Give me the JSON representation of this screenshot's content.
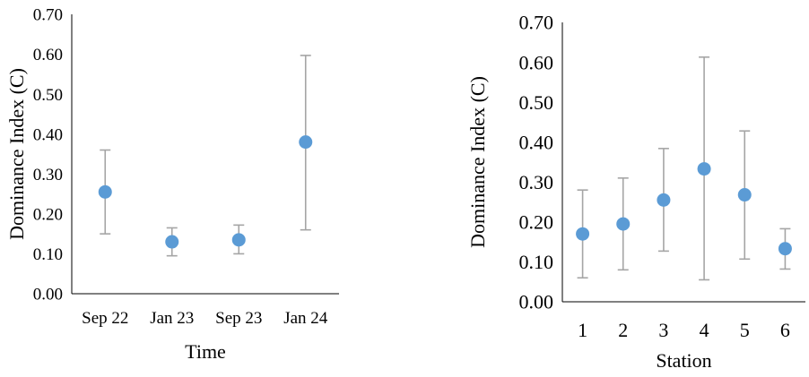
{
  "chart_data": [
    {
      "type": "scatter",
      "error_bars": true,
      "title": "",
      "xlabel": "Time",
      "ylabel": "Dominance Index (C)",
      "ylim": [
        0,
        0.7
      ],
      "yticks": [
        "0.00",
        "0.10",
        "0.20",
        "0.30",
        "0.40",
        "0.50",
        "0.60",
        "0.70"
      ],
      "grid": false,
      "legend": "none",
      "categories": [
        "Sep 22",
        "Jan 23",
        "Sep 23",
        "Jan 24"
      ],
      "series": [
        {
          "values": [
            0.255,
            0.13,
            0.135,
            0.38
          ],
          "error_low": [
            0.15,
            0.095,
            0.1,
            0.16
          ],
          "error_high": [
            0.36,
            0.165,
            0.172,
            0.597
          ]
        }
      ],
      "colors": {
        "marker": "#5b9bd5",
        "error_bar": "#a5a5a5",
        "axis": "#000000"
      }
    },
    {
      "type": "scatter",
      "error_bars": true,
      "title": "",
      "xlabel": "Station",
      "ylabel": "Dominance Index (C)",
      "ylim": [
        0,
        0.7
      ],
      "yticks": [
        "0.00",
        "0.10",
        "0.20",
        "0.30",
        "0.40",
        "0.50",
        "0.60",
        "0.70"
      ],
      "grid": false,
      "legend": "none",
      "categories": [
        "1",
        "2",
        "3",
        "4",
        "5",
        "6"
      ],
      "series": [
        {
          "values": [
            0.17,
            0.195,
            0.255,
            0.333,
            0.268,
            0.133
          ],
          "error_low": [
            0.06,
            0.08,
            0.127,
            0.055,
            0.107,
            0.082
          ],
          "error_high": [
            0.28,
            0.31,
            0.384,
            0.613,
            0.428,
            0.183
          ]
        }
      ],
      "colors": {
        "marker": "#5b9bd5",
        "error_bar": "#a5a5a5",
        "axis": "#000000"
      }
    }
  ]
}
